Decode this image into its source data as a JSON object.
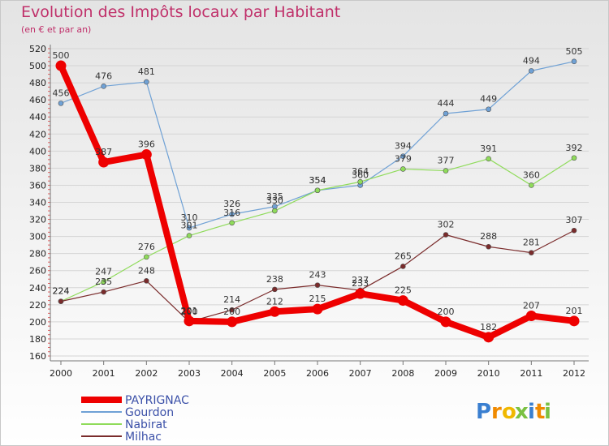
{
  "chart_data": {
    "type": "line",
    "title": "Evolution des Impôts locaux par Habitant",
    "subtitle": "(en € et par an)",
    "xlabel": "",
    "ylabel": "",
    "categories": [
      "2000",
      "2001",
      "2002",
      "2003",
      "2004",
      "2005",
      "2006",
      "2007",
      "2008",
      "2009",
      "2010",
      "2011",
      "2012"
    ],
    "ylim": [
      160,
      520
    ],
    "yticks": [
      160,
      180,
      200,
      220,
      240,
      260,
      280,
      300,
      320,
      340,
      360,
      380,
      400,
      420,
      440,
      460,
      480,
      500,
      520
    ],
    "series": [
      {
        "name": "PAYRIGNAC",
        "color": "#ee0000",
        "values": [
          500,
          387,
          396,
          201,
          200,
          212,
          215,
          233,
          225,
          200,
          182,
          207,
          201
        ]
      },
      {
        "name": "Gourdon",
        "color": "#6fa1d5",
        "values": [
          456,
          476,
          481,
          310,
          326,
          335,
          354,
          360,
          394,
          444,
          449,
          494,
          505
        ]
      },
      {
        "name": "Nabirat",
        "color": "#8fdb5a",
        "values": [
          224,
          247,
          276,
          301,
          316,
          330,
          354,
          364,
          379,
          377,
          391,
          360,
          392
        ]
      },
      {
        "name": "Milhac",
        "color": "#7a2b2b",
        "values": [
          224,
          235,
          248,
          200,
          214,
          238,
          243,
          237,
          265,
          302,
          288,
          281,
          307
        ]
      }
    ],
    "legend_position": "bottom-left"
  },
  "logo": {
    "letters": [
      "P",
      "r",
      "o",
      "x",
      "i",
      "t",
      "i"
    ],
    "colors": [
      "#3a7fd0",
      "#f08a00",
      "#f0b800",
      "#7ac143",
      "#3a7fd0",
      "#f08a00",
      "#7ac143"
    ]
  }
}
